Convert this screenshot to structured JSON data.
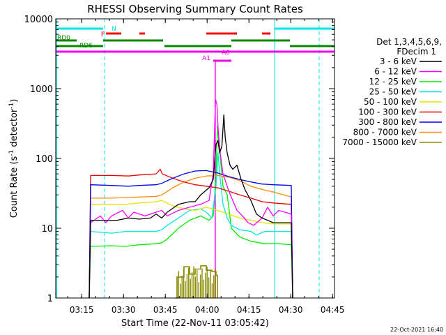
{
  "chart_data": {
    "type": "line",
    "title": "RHESSI Observing Summary Count Rates",
    "xlabel": "Start Time (22-Nov-11 03:05:42)",
    "ylabel_main": "Count Rate (s",
    "ylabel_sup1": "-1",
    "ylabel_mid": " detector",
    "ylabel_sup2": "-1",
    "ylabel_end": ")",
    "footer": "22-Oct-2021 16:40",
    "x_ticks": [
      {
        "label": "03:15",
        "min": 9.3
      },
      {
        "label": "03:30",
        "min": 24.3
      },
      {
        "label": "03:45",
        "min": 39.3
      },
      {
        "label": "04:00",
        "min": 54.3
      },
      {
        "label": "04:15",
        "min": 69.3
      },
      {
        "label": "04:30",
        "min": 84.3
      },
      {
        "label": "04:45",
        "min": 99.3
      }
    ],
    "xlim_minutes": [
      0,
      100
    ],
    "y_ticks": [
      {
        "label": "1",
        "v": 1
      },
      {
        "label": "10",
        "v": 10
      },
      {
        "label": "100",
        "v": 100
      },
      {
        "label": "1000",
        "v": 1000
      },
      {
        "label": "10000",
        "v": 10000
      }
    ],
    "ylim": [
      1,
      10000
    ],
    "yscale": "log",
    "legend": {
      "header1": "Det 1,3,4,5,6,9,",
      "header2": "FDecim 1",
      "entries": [
        {
          "label": "3 - 6 keV",
          "color": "#000000"
        },
        {
          "label": "6 - 12 keV",
          "color": "#ff00ff"
        },
        {
          "label": "12 - 25 keV",
          "color": "#00ee00"
        },
        {
          "label": "25 - 50 keV",
          "color": "#00e5e5"
        },
        {
          "label": "50 - 100 keV",
          "color": "#e5e500"
        },
        {
          "label": "100 - 300 keV",
          "color": "#ee0000"
        },
        {
          "label": "300 - 800 keV",
          "color": "#0000ee"
        },
        {
          "label": "800 - 7000 keV",
          "color": "#ff8c00"
        },
        {
          "label": "7000 - 15000 keV",
          "color": "#8b8b00"
        }
      ]
    },
    "flags": [
      {
        "label": "N",
        "color": "#00e5e5",
        "segments": [
          [
            0,
            17
          ],
          [
            78.5,
            100
          ]
        ]
      },
      {
        "label": "F",
        "color": "#ee0000",
        "segments": [
          [
            18,
            23.5
          ],
          [
            30,
            32
          ],
          [
            54,
            65
          ],
          [
            74,
            77
          ]
        ]
      },
      {
        "label": "RD0",
        "color": "#008800",
        "segments": [
          [
            0,
            7.5
          ],
          [
            17,
            38.5
          ],
          [
            63,
            84
          ]
        ]
      },
      {
        "label": "RD6",
        "color": "#008800",
        "segments": [
          [
            0,
            17
          ],
          [
            39,
            63
          ],
          [
            84,
            100
          ]
        ]
      },
      {
        "label": "",
        "color": "#ee00ee",
        "segments": [
          [
            0,
            100
          ]
        ]
      },
      {
        "label": "A1",
        "color": "#ee00ee",
        "segments": [
          [
            56.5,
            60
          ]
        ]
      },
      {
        "label": "A0",
        "color": "#ee00ee",
        "segments": [
          [
            59.5,
            63
          ]
        ]
      }
    ],
    "vlines_minutes": [
      17.5,
      78.5,
      94.5
    ],
    "series": [
      {
        "color": "#8b8b00",
        "kind": "step",
        "points": [
          [
            43,
            1
          ],
          [
            43.5,
            2
          ],
          [
            46,
            2.8
          ],
          [
            48,
            2.2
          ],
          [
            50,
            2.6
          ],
          [
            52,
            2.9
          ],
          [
            54,
            2.5
          ],
          [
            56,
            2.4
          ],
          [
            57.5,
            2.1
          ],
          [
            58,
            1
          ]
        ]
      },
      {
        "color": "#00ee00",
        "points": [
          [
            12,
            1
          ],
          [
            12.5,
            5.5
          ],
          [
            20,
            5.6
          ],
          [
            25,
            5.5
          ],
          [
            30,
            5.8
          ],
          [
            36,
            6
          ],
          [
            38,
            6.2
          ],
          [
            40,
            7
          ],
          [
            44,
            10
          ],
          [
            48,
            13
          ],
          [
            52,
            15
          ],
          [
            55,
            13
          ],
          [
            56.5,
            15
          ],
          [
            57.5,
            60
          ],
          [
            58,
            290
          ],
          [
            58.7,
            140
          ],
          [
            60,
            40
          ],
          [
            61.5,
            30
          ],
          [
            63,
            10
          ],
          [
            66,
            7.5
          ],
          [
            70,
            6.5
          ],
          [
            75,
            6
          ],
          [
            80,
            6
          ],
          [
            84.5,
            5.8
          ],
          [
            85,
            1
          ]
        ]
      },
      {
        "color": "#00e5e5",
        "points": [
          [
            12,
            1
          ],
          [
            12.5,
            9
          ],
          [
            20,
            8.5
          ],
          [
            25,
            9
          ],
          [
            30,
            9
          ],
          [
            36,
            9
          ],
          [
            38,
            9.5
          ],
          [
            40,
            11
          ],
          [
            44,
            14
          ],
          [
            48,
            18
          ],
          [
            52,
            19
          ],
          [
            54,
            17
          ],
          [
            56,
            14
          ],
          [
            57.5,
            40
          ],
          [
            58.2,
            120
          ],
          [
            58.8,
            60
          ],
          [
            60,
            22
          ],
          [
            61.5,
            14
          ],
          [
            63,
            11
          ],
          [
            66,
            9.5
          ],
          [
            70,
            9
          ],
          [
            72,
            8
          ],
          [
            75,
            9
          ],
          [
            80,
            9
          ],
          [
            84.5,
            9
          ],
          [
            85,
            1
          ]
        ]
      },
      {
        "color": "#e5e500",
        "points": [
          [
            12,
            1
          ],
          [
            12.5,
            22
          ],
          [
            20,
            22
          ],
          [
            25,
            22
          ],
          [
            30,
            23
          ],
          [
            36,
            24
          ],
          [
            38,
            25
          ],
          [
            42,
            21
          ],
          [
            46,
            19
          ],
          [
            50,
            18
          ],
          [
            54,
            20
          ],
          [
            58,
            18
          ],
          [
            62,
            16
          ],
          [
            66,
            14
          ],
          [
            70,
            13
          ],
          [
            74,
            12
          ],
          [
            78,
            11.5
          ],
          [
            82,
            11.5
          ],
          [
            84.5,
            11.5
          ],
          [
            85,
            1
          ]
        ]
      },
      {
        "color": "#ff8c00",
        "points": [
          [
            12,
            1
          ],
          [
            12.5,
            27
          ],
          [
            20,
            27
          ],
          [
            26,
            27.5
          ],
          [
            30,
            28
          ],
          [
            36,
            28.5
          ],
          [
            38,
            30
          ],
          [
            42,
            38
          ],
          [
            46,
            46
          ],
          [
            50,
            52
          ],
          [
            54,
            56
          ],
          [
            58,
            57
          ],
          [
            62,
            54
          ],
          [
            66,
            48
          ],
          [
            70,
            40
          ],
          [
            74,
            36
          ],
          [
            78,
            33
          ],
          [
            84.5,
            28
          ],
          [
            85,
            1
          ]
        ]
      },
      {
        "color": "#ee0000",
        "points": [
          [
            12,
            1
          ],
          [
            12.5,
            57
          ],
          [
            20,
            57
          ],
          [
            26,
            56
          ],
          [
            30,
            58
          ],
          [
            36,
            60
          ],
          [
            37.5,
            70
          ],
          [
            38.2,
            60
          ],
          [
            42,
            52
          ],
          [
            46,
            46
          ],
          [
            50,
            42
          ],
          [
            54,
            40
          ],
          [
            58,
            38
          ],
          [
            62,
            34
          ],
          [
            66,
            30
          ],
          [
            70,
            27
          ],
          [
            74,
            24
          ],
          [
            78,
            23
          ],
          [
            84.5,
            22
          ],
          [
            85,
            1
          ]
        ]
      },
      {
        "color": "#0000ee",
        "points": [
          [
            12,
            1
          ],
          [
            12.5,
            42
          ],
          [
            20,
            41
          ],
          [
            26,
            40
          ],
          [
            30,
            41
          ],
          [
            36,
            42
          ],
          [
            38,
            44
          ],
          [
            42,
            52
          ],
          [
            46,
            60
          ],
          [
            50,
            66
          ],
          [
            54,
            67
          ],
          [
            58,
            62
          ],
          [
            62,
            55
          ],
          [
            66,
            50
          ],
          [
            70,
            46
          ],
          [
            74,
            43
          ],
          [
            78,
            42
          ],
          [
            84.5,
            41
          ],
          [
            85,
            1
          ]
        ]
      },
      {
        "color": "#ff00ff",
        "points": [
          [
            12,
            1
          ],
          [
            12.5,
            12
          ],
          [
            16,
            15
          ],
          [
            18,
            12
          ],
          [
            20,
            15
          ],
          [
            24,
            18
          ],
          [
            26,
            14
          ],
          [
            28,
            17
          ],
          [
            32,
            15
          ],
          [
            36,
            17
          ],
          [
            38,
            18
          ],
          [
            40,
            15
          ],
          [
            44,
            18
          ],
          [
            48,
            20
          ],
          [
            52,
            22
          ],
          [
            55,
            25
          ],
          [
            56.5,
            60
          ],
          [
            57.3,
            700
          ],
          [
            57.8,
            600
          ],
          [
            58.3,
            250
          ],
          [
            59,
            120
          ],
          [
            60,
            60
          ],
          [
            62,
            35
          ],
          [
            63.5,
            25
          ],
          [
            65,
            18
          ],
          [
            67,
            15
          ],
          [
            69,
            12
          ],
          [
            71,
            11
          ],
          [
            74,
            14
          ],
          [
            76,
            20
          ],
          [
            78,
            15
          ],
          [
            80,
            18
          ],
          [
            84.5,
            16
          ],
          [
            85,
            1
          ]
        ]
      },
      {
        "color": "#000000",
        "points": [
          [
            12,
            1
          ],
          [
            12.5,
            13
          ],
          [
            18,
            13
          ],
          [
            22,
            13
          ],
          [
            26,
            14
          ],
          [
            30,
            13.5
          ],
          [
            34,
            14
          ],
          [
            36,
            16
          ],
          [
            38,
            14
          ],
          [
            40,
            17
          ],
          [
            44,
            22
          ],
          [
            48,
            24
          ],
          [
            50,
            24
          ],
          [
            52,
            30
          ],
          [
            55,
            38
          ],
          [
            56.5,
            50
          ],
          [
            57.5,
            160
          ],
          [
            58.2,
            180
          ],
          [
            58.8,
            120
          ],
          [
            59.6,
            150
          ],
          [
            60.3,
            420
          ],
          [
            60.8,
            200
          ],
          [
            61.5,
            120
          ],
          [
            62.5,
            80
          ],
          [
            63.5,
            70
          ],
          [
            65,
            80
          ],
          [
            66.5,
            50
          ],
          [
            68,
            35
          ],
          [
            70,
            25
          ],
          [
            72,
            16
          ],
          [
            74,
            14
          ],
          [
            76,
            13
          ],
          [
            78,
            12
          ],
          [
            80,
            12
          ],
          [
            84.5,
            12
          ],
          [
            85,
            1
          ]
        ]
      }
    ]
  }
}
